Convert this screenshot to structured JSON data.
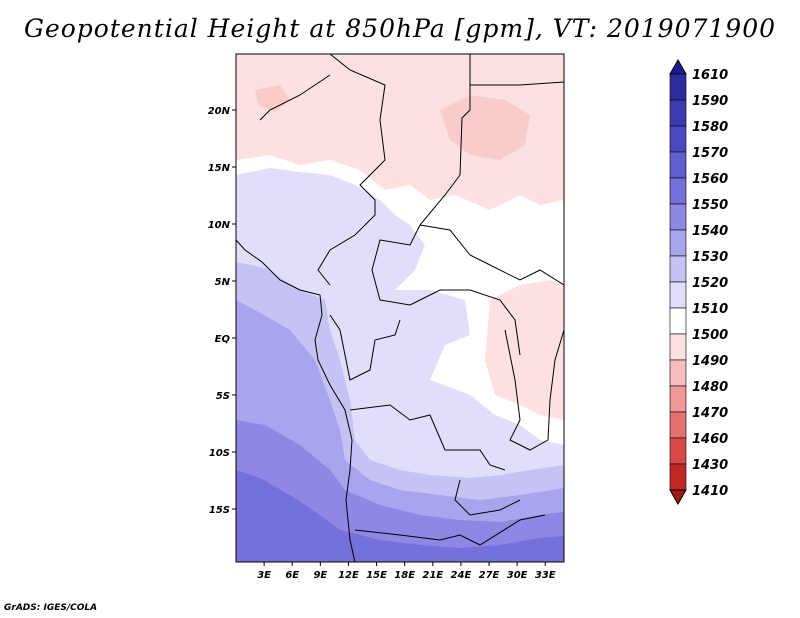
{
  "title": "Geopotential Height at 850hPa [gpm], VT: 2019071900",
  "credit": "GrADS: IGES/COLA",
  "map": {
    "lon_labels": [
      "3E",
      "6E",
      "9E",
      "12E",
      "15E",
      "18E",
      "21E",
      "24E",
      "27E",
      "30E",
      "33E"
    ],
    "lat_labels": [
      "20N",
      "15N",
      "10N",
      "5N",
      "EQ",
      "5S",
      "10S",
      "15S"
    ],
    "lon_range": [
      0,
      35
    ],
    "lat_range": [
      -20,
      25
    ]
  },
  "colorbar": {
    "labels": [
      "1610",
      "1590",
      "1580",
      "1570",
      "1560",
      "1550",
      "1540",
      "1530",
      "1520",
      "1510",
      "1500",
      "1490",
      "1480",
      "1470",
      "1460",
      "1430",
      "1410"
    ],
    "colors": [
      "#1e1a8c",
      "#2b2d9e",
      "#3a3cb0",
      "#4a4bc0",
      "#5f5fcf",
      "#7670da",
      "#8e88e4",
      "#a9a4ee",
      "#c6c3f4",
      "#e0defa",
      "#ffffff",
      "#fde0e0",
      "#f7bcbc",
      "#ef9898",
      "#e47070",
      "#d84a4a",
      "#c02828",
      "#a01818"
    ]
  }
}
